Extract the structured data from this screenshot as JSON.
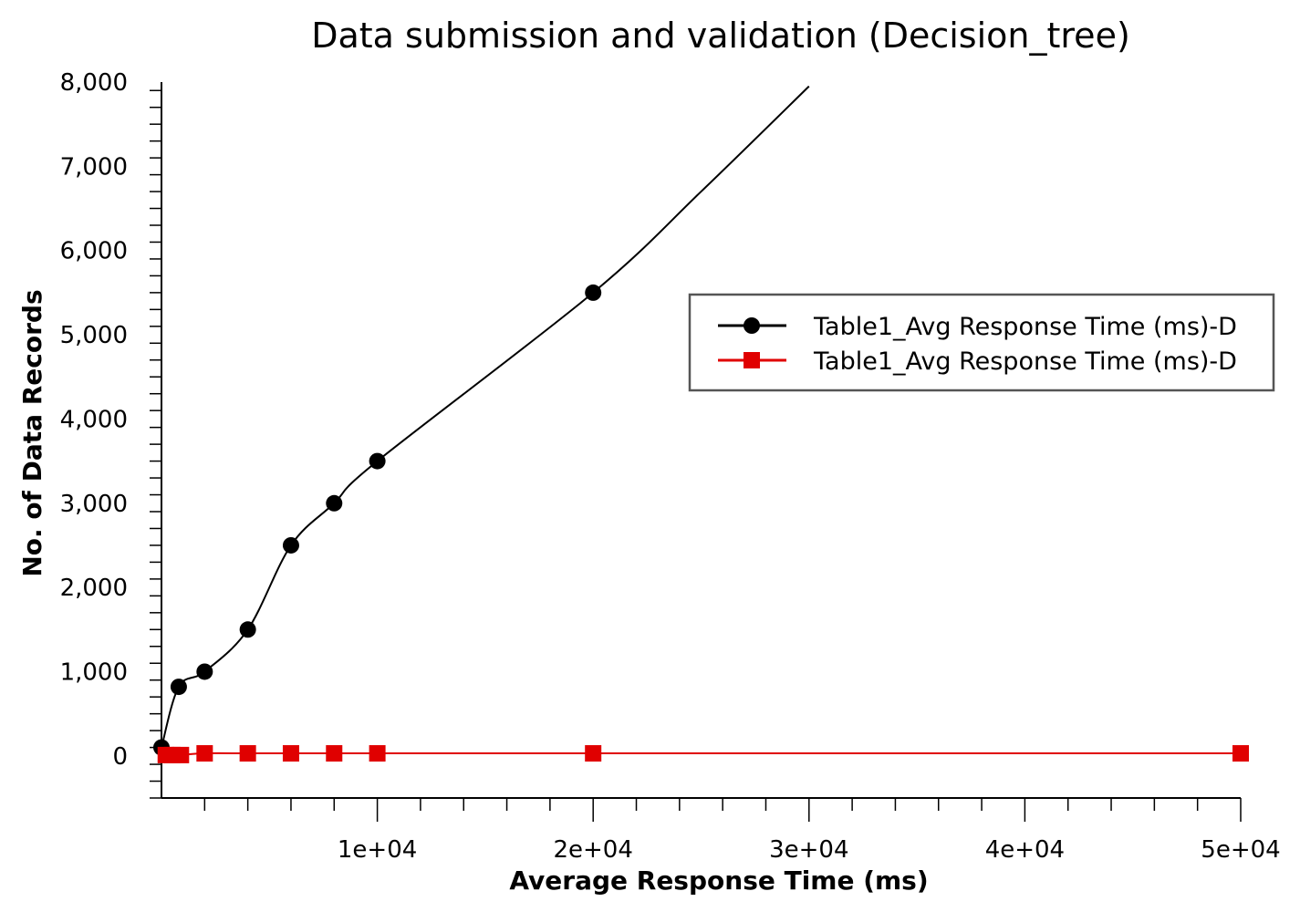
{
  "chart_data": {
    "type": "line",
    "title": "Data submission and validation (Decision_tree)",
    "xlabel": "Average Response Time (ms)",
    "ylabel": "No. of Data Records",
    "xlim": [
      0,
      50000
    ],
    "ylim": [
      -500,
      8000
    ],
    "x_ticks": [
      10000,
      20000,
      30000,
      40000,
      50000
    ],
    "x_tick_labels": [
      "1e+04",
      "2e+04",
      "3e+04",
      "4e+04",
      "5e+04"
    ],
    "y_ticks": [
      0,
      1000,
      2000,
      3000,
      4000,
      5000,
      6000,
      7000,
      8000
    ],
    "y_tick_labels": [
      "0",
      "1,000",
      "2,000",
      "3,000",
      "4,000",
      "5,000",
      "6,000",
      "7,000",
      "8,000"
    ],
    "grid": false,
    "legend_position": "right",
    "series": [
      {
        "name": "Table1_Avg Response Time (ms)-D",
        "color": "#000000",
        "marker": "circle",
        "points": [
          [
            0,
            100
          ],
          [
            800,
            820
          ],
          [
            2000,
            1000
          ],
          [
            4000,
            1500
          ],
          [
            6000,
            2500
          ],
          [
            8000,
            3000
          ],
          [
            10000,
            3500
          ],
          [
            20000,
            5500
          ]
        ],
        "trend_points": [
          [
            20000,
            5500
          ],
          [
            25000,
            6700
          ],
          [
            30000,
            7950
          ]
        ]
      },
      {
        "name": "Table1_Avg Response Time (ms)-D",
        "color": "#e00000",
        "marker": "square",
        "points": [
          [
            200,
            10
          ],
          [
            500,
            10
          ],
          [
            900,
            10
          ],
          [
            2000,
            30
          ],
          [
            4000,
            30
          ],
          [
            6000,
            30
          ],
          [
            8000,
            30
          ],
          [
            10000,
            30
          ],
          [
            20000,
            30
          ],
          [
            50000,
            30
          ]
        ]
      }
    ]
  }
}
